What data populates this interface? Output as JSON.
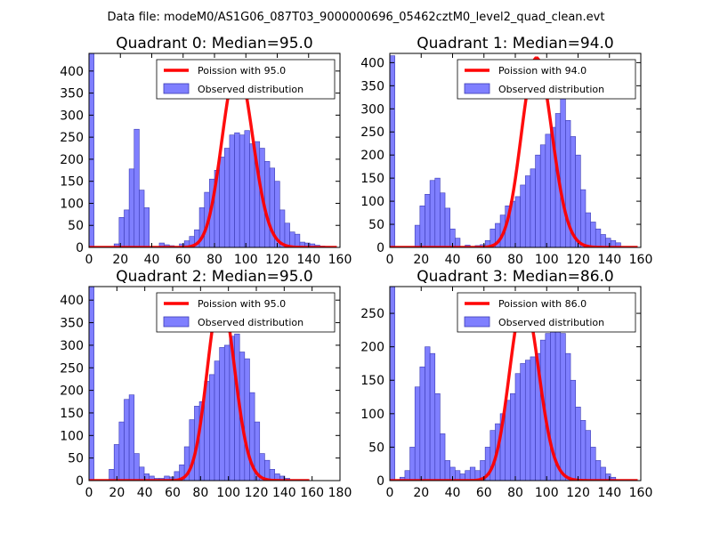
{
  "figure": {
    "suptitle": "Data file: modeM0/AS1G06_087T03_9000000696_05462cztM0_level2_quad_clean.evt"
  },
  "colors": {
    "bar_fill": "#7f7fff",
    "bar_edge": "#3b3bb5",
    "poisson_line": "#ff0000"
  },
  "chart_data": [
    {
      "type": "bar",
      "title": "Quadrant 0: Median=95.0",
      "legend": [
        "Poission with 95.0",
        "Observed distribution"
      ],
      "legend_loc": "upper-right",
      "xlim": [
        0,
        160
      ],
      "ylim": [
        0,
        440
      ],
      "xticks": [
        0,
        20,
        40,
        60,
        80,
        100,
        120,
        140,
        160
      ],
      "yticks": [
        0,
        50,
        100,
        150,
        200,
        250,
        300,
        350,
        400
      ],
      "poisson_mean": 95,
      "poisson_peak": 410,
      "bin_width": 3.2,
      "bin_start": [
        0,
        16,
        19.2,
        22.4,
        25.6,
        28.8,
        32,
        35.2,
        44.8,
        48,
        51.2,
        54.4,
        57.6,
        60.8,
        64,
        67.2,
        70.4,
        73.6,
        76.8,
        80,
        83.2,
        86.4,
        89.6,
        92.8,
        96,
        99.2,
        102.4,
        105.6,
        108.8,
        112,
        115.2,
        118.4,
        121.6,
        124.8,
        128,
        131.2,
        134.4,
        137.6,
        140.8,
        144,
        147.2,
        150.4
      ],
      "counts": [
        440,
        8,
        68,
        85,
        178,
        268,
        130,
        90,
        10,
        6,
        4,
        2,
        8,
        15,
        25,
        40,
        90,
        125,
        155,
        175,
        205,
        225,
        255,
        260,
        255,
        265,
        235,
        240,
        225,
        195,
        180,
        150,
        85,
        55,
        35,
        30,
        12,
        10,
        8,
        5,
        3,
        2
      ]
    },
    {
      "type": "bar",
      "title": "Quadrant 1: Median=94.0",
      "legend": [
        "Poission with 94.0",
        "Observed distribution"
      ],
      "legend_loc": "upper-right",
      "xlim": [
        0,
        160
      ],
      "ylim": [
        0,
        420
      ],
      "xticks": [
        0,
        20,
        40,
        60,
        80,
        100,
        120,
        140,
        160
      ],
      "yticks": [
        0,
        50,
        100,
        150,
        200,
        250,
        300,
        350,
        400
      ],
      "poisson_mean": 94,
      "poisson_peak": 410,
      "bin_width": 3.2,
      "bin_start": [
        0,
        16,
        19.2,
        22.4,
        25.6,
        28.8,
        32,
        35.2,
        38.4,
        41.6,
        48,
        54.4,
        57.6,
        60.8,
        64,
        67.2,
        70.4,
        73.6,
        76.8,
        80,
        83.2,
        86.4,
        89.6,
        92.8,
        96,
        99.2,
        102.4,
        105.6,
        108.8,
        112,
        115.2,
        118.4,
        121.6,
        124.8,
        128,
        131.2,
        134.4,
        137.6,
        140.8,
        144
      ],
      "counts": [
        415,
        48,
        90,
        115,
        145,
        150,
        118,
        85,
        40,
        20,
        5,
        4,
        6,
        15,
        40,
        52,
        70,
        90,
        100,
        110,
        135,
        155,
        170,
        200,
        222,
        245,
        260,
        290,
        330,
        275,
        240,
        200,
        125,
        75,
        55,
        40,
        28,
        20,
        15,
        10
      ]
    },
    {
      "type": "bar",
      "title": "Quadrant 2: Median=95.0",
      "legend": [
        "Poission with 95.0",
        "Observed distribution"
      ],
      "legend_loc": "upper-right",
      "xlim": [
        0,
        180
      ],
      "ylim": [
        0,
        430
      ],
      "xticks": [
        0,
        20,
        40,
        60,
        80,
        100,
        120,
        140,
        160,
        180
      ],
      "yticks": [
        0,
        50,
        100,
        150,
        200,
        250,
        300,
        350,
        400
      ],
      "poisson_mean": 95,
      "poisson_peak": 410,
      "bin_width": 3.6,
      "bin_start": [
        0,
        14.4,
        18,
        21.6,
        25.2,
        28.8,
        32.4,
        36,
        39.6,
        43.2,
        46.8,
        50.4,
        54,
        57.6,
        61.2,
        64.8,
        68.4,
        72,
        75.6,
        79.2,
        82.8,
        86.4,
        90,
        93.6,
        97.2,
        100.8,
        104.4,
        108,
        111.6,
        115.2,
        118.8,
        122.4,
        126,
        129.6,
        133.2,
        136.8,
        140.4
      ],
      "counts": [
        430,
        25,
        80,
        130,
        180,
        190,
        60,
        30,
        15,
        10,
        5,
        5,
        10,
        8,
        20,
        35,
        75,
        135,
        165,
        175,
        220,
        235,
        265,
        295,
        300,
        320,
        325,
        285,
        270,
        195,
        130,
        60,
        45,
        25,
        15,
        10,
        5
      ]
    },
    {
      "type": "bar",
      "title": "Quadrant 3: Median=86.0",
      "legend": [
        "Poission with 86.0",
        "Observed distribution"
      ],
      "legend_loc": "upper-right",
      "xlim": [
        0,
        160
      ],
      "ylim": [
        0,
        290
      ],
      "xticks": [
        0,
        20,
        40,
        60,
        80,
        100,
        120,
        140,
        160
      ],
      "yticks": [
        0,
        50,
        100,
        150,
        200,
        250
      ],
      "poisson_mean": 86,
      "poisson_peak": 270,
      "bin_width": 3.2,
      "bin_start": [
        0,
        6.4,
        9.6,
        12.8,
        16,
        19.2,
        22.4,
        25.6,
        28.8,
        32,
        35.2,
        38.4,
        41.6,
        44.8,
        48,
        51.2,
        54.4,
        57.6,
        60.8,
        64,
        67.2,
        70.4,
        73.6,
        76.8,
        80,
        83.2,
        86.4,
        89.6,
        92.8,
        96,
        99.2,
        102.4,
        105.6,
        108.8,
        112,
        115.2,
        118.4,
        121.6,
        124.8,
        128,
        131.2,
        134.4,
        137.6,
        140.8
      ],
      "counts": [
        290,
        5,
        15,
        50,
        140,
        170,
        200,
        190,
        130,
        70,
        30,
        20,
        15,
        10,
        15,
        20,
        15,
        30,
        50,
        75,
        85,
        100,
        120,
        130,
        160,
        175,
        180,
        185,
        190,
        210,
        220,
        230,
        230,
        220,
        190,
        150,
        110,
        90,
        75,
        50,
        30,
        20,
        10,
        5
      ]
    }
  ]
}
